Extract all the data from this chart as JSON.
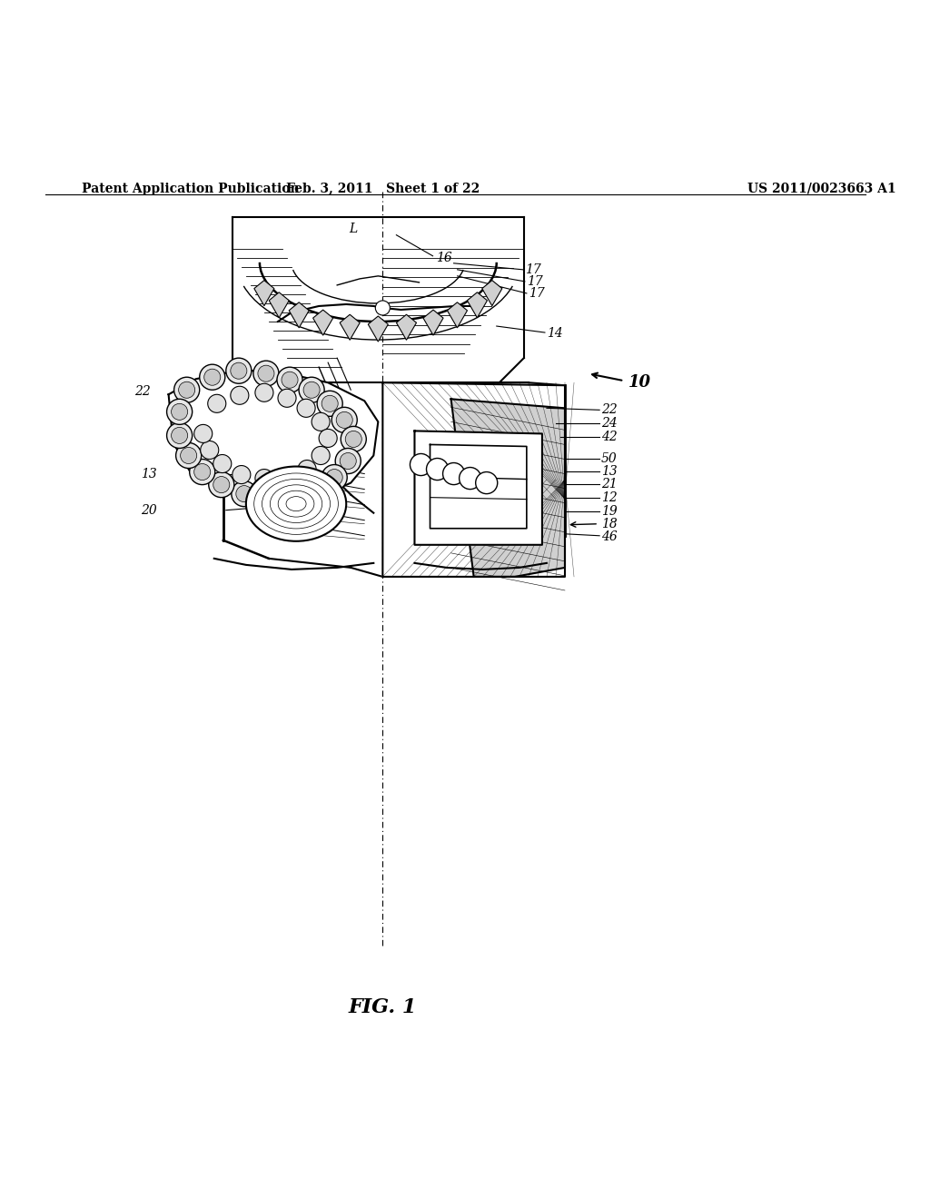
{
  "header_left": "Patent Application Publication",
  "header_center": "Feb. 3, 2011   Sheet 1 of 22",
  "header_right": "US 2011/0023663 A1",
  "figure_caption": "FIG. 1",
  "bg_color": "#ffffff",
  "line_color": "#000000",
  "text_color": "#000000",
  "header_fontsize": 10,
  "label_fontsize": 10,
  "label_fontsize_large": 13,
  "caption_fontsize": 16
}
